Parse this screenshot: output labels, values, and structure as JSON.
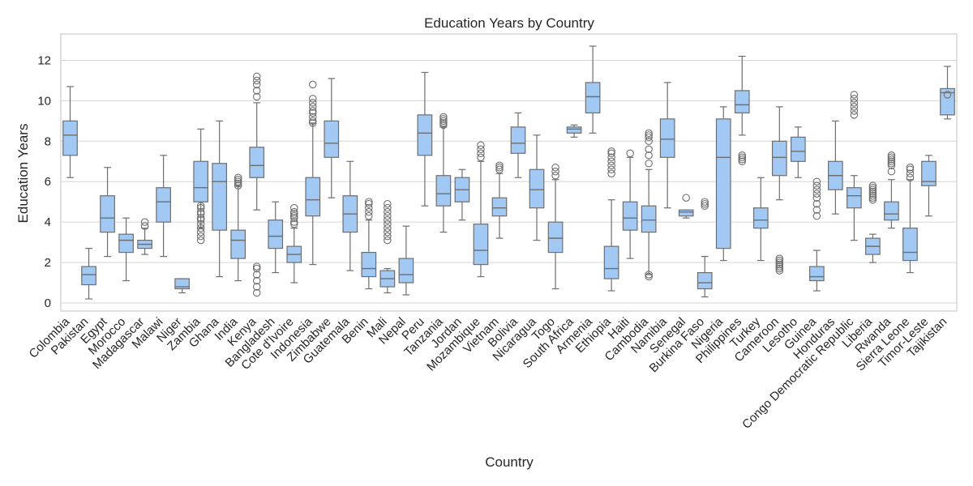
{
  "chart_data": {
    "type": "box",
    "title": "Education Years by Country",
    "xlabel": "Country",
    "ylabel": "Education Years",
    "ylim": [
      -0.4,
      13.3
    ],
    "yticks": [
      0,
      2,
      4,
      6,
      8,
      10,
      12
    ],
    "grid": true,
    "box_color": "#a1c9f4",
    "line_color": "#6e6e6e",
    "grid_color": "#d6d6d6",
    "categories": [
      "Colombia",
      "Pakistan",
      "Egypt",
      "Morocco",
      "Madagascar",
      "Malawi",
      "Niger",
      "Zambia",
      "Ghana",
      "India",
      "Kenya",
      "Bangladesh",
      "Cote d'Ivoire",
      "Indonesia",
      "Zimbabwe",
      "Guatemala",
      "Benin",
      "Mali",
      "Nepal",
      "Peru",
      "Tanzania",
      "Jordan",
      "Mozambique",
      "Vietnam",
      "Bolivia",
      "Nicaragua",
      "Togo",
      "South Africa",
      "Armenia",
      "Ethiopia",
      "Haiti",
      "Cambodia",
      "Namibia",
      "Senegal",
      "Burkina Faso",
      "Nigeria",
      "Philippines",
      "Turkey",
      "Cameroon",
      "Lesotho",
      "Guinea",
      "Honduras",
      "Congo Democratic Republic",
      "Liberia",
      "Rwanda",
      "Sierra Leone",
      "Timor-Leste",
      "Tajikistan"
    ],
    "boxes": [
      {
        "whislo": 6.2,
        "q1": 7.3,
        "med": 8.3,
        "q3": 9.0,
        "whishi": 10.7,
        "fliers": []
      },
      {
        "whislo": 0.2,
        "q1": 0.9,
        "med": 1.4,
        "q3": 1.8,
        "whishi": 2.7,
        "fliers": []
      },
      {
        "whislo": 2.3,
        "q1": 3.5,
        "med": 4.2,
        "q3": 5.3,
        "whishi": 6.7,
        "fliers": []
      },
      {
        "whislo": 1.1,
        "q1": 2.5,
        "med": 3.1,
        "q3": 3.4,
        "whishi": 4.2,
        "fliers": []
      },
      {
        "whislo": 2.4,
        "q1": 2.7,
        "med": 2.9,
        "q3": 3.1,
        "whishi": 3.7,
        "fliers": [
          3.8,
          4.0
        ]
      },
      {
        "whislo": 2.3,
        "q1": 4.0,
        "med": 5.0,
        "q3": 5.7,
        "whishi": 7.3,
        "fliers": []
      },
      {
        "whislo": 0.5,
        "q1": 0.7,
        "med": 0.8,
        "q3": 1.2,
        "whishi": 1.2,
        "fliers": []
      },
      {
        "whislo": 3.7,
        "q1": 5.0,
        "med": 5.7,
        "q3": 7.0,
        "whishi": 8.6,
        "fliers": [
          3.1,
          3.3,
          3.5,
          3.7,
          3.9,
          4.1,
          4.2,
          4.4,
          4.5,
          4.7,
          4.8
        ]
      },
      {
        "whislo": 1.3,
        "q1": 3.6,
        "med": 6.0,
        "q3": 6.9,
        "whishi": 9.0,
        "fliers": []
      },
      {
        "whislo": 1.1,
        "q1": 2.2,
        "med": 3.1,
        "q3": 3.6,
        "whishi": 5.8,
        "fliers": [
          5.8,
          5.9,
          6.0,
          6.1,
          6.2
        ]
      },
      {
        "whislo": 4.6,
        "q1": 6.2,
        "med": 6.8,
        "q3": 7.7,
        "whishi": 9.9,
        "fliers": [
          10.2,
          10.5,
          10.8,
          11.0,
          11.2,
          0.5,
          0.8,
          1.1,
          1.4,
          1.7,
          1.8
        ]
      },
      {
        "whislo": 1.5,
        "q1": 2.7,
        "med": 3.3,
        "q3": 4.1,
        "whishi": 5.0,
        "fliers": []
      },
      {
        "whislo": 1.0,
        "q1": 2.0,
        "med": 2.4,
        "q3": 2.8,
        "whishi": 3.7,
        "fliers": [
          3.9,
          4.0,
          4.2,
          4.3,
          4.4,
          4.5,
          4.7
        ]
      },
      {
        "whislo": 1.9,
        "q1": 4.3,
        "med": 5.1,
        "q3": 6.2,
        "whishi": 8.9,
        "fliers": [
          8.9,
          9.0,
          9.2,
          9.4,
          9.5,
          9.7,
          9.9,
          10.1,
          10.8
        ]
      },
      {
        "whislo": 5.2,
        "q1": 7.2,
        "med": 7.9,
        "q3": 9.0,
        "whishi": 11.1,
        "fliers": []
      },
      {
        "whislo": 1.6,
        "q1": 3.5,
        "med": 4.4,
        "q3": 5.3,
        "whishi": 7.0,
        "fliers": []
      },
      {
        "whislo": 0.7,
        "q1": 1.3,
        "med": 1.7,
        "q3": 2.5,
        "whishi": 4.1,
        "fliers": [
          4.3,
          4.5,
          4.7,
          4.9,
          5.0
        ]
      },
      {
        "whislo": 0.5,
        "q1": 0.8,
        "med": 1.2,
        "q3": 1.6,
        "whishi": 1.7,
        "fliers": [
          3.1,
          3.3,
          3.5,
          3.7,
          3.9,
          4.1,
          4.3,
          4.5,
          4.7,
          4.9
        ]
      },
      {
        "whislo": 0.4,
        "q1": 1.0,
        "med": 1.4,
        "q3": 2.2,
        "whishi": 3.8,
        "fliers": []
      },
      {
        "whislo": 4.8,
        "q1": 7.3,
        "med": 8.4,
        "q3": 9.3,
        "whishi": 11.4,
        "fliers": []
      },
      {
        "whislo": 3.5,
        "q1": 4.8,
        "med": 5.4,
        "q3": 6.3,
        "whishi": 8.7,
        "fliers": [
          8.8,
          8.9,
          9.0,
          9.1,
          9.2
        ]
      },
      {
        "whislo": 4.1,
        "q1": 5.0,
        "med": 5.6,
        "q3": 6.2,
        "whishi": 6.6,
        "fliers": []
      },
      {
        "whislo": 1.3,
        "q1": 1.9,
        "med": 2.6,
        "q3": 3.9,
        "whishi": 7.0,
        "fliers": [
          7.2,
          7.4,
          7.6,
          7.8
        ]
      },
      {
        "whislo": 3.2,
        "q1": 4.3,
        "med": 4.7,
        "q3": 5.2,
        "whishi": 6.4,
        "fliers": [
          6.6,
          6.7,
          6.8
        ]
      },
      {
        "whislo": 6.2,
        "q1": 7.4,
        "med": 7.9,
        "q3": 8.7,
        "whishi": 9.4,
        "fliers": []
      },
      {
        "whislo": 3.1,
        "q1": 4.7,
        "med": 5.6,
        "q3": 6.6,
        "whishi": 8.3,
        "fliers": []
      },
      {
        "whislo": 0.7,
        "q1": 2.5,
        "med": 3.2,
        "q3": 4.0,
        "whishi": 6.1,
        "fliers": [
          6.3,
          6.5,
          6.7
        ]
      },
      {
        "whislo": 8.2,
        "q1": 8.4,
        "med": 8.6,
        "q3": 8.7,
        "whishi": 8.8,
        "fliers": []
      },
      {
        "whislo": 8.4,
        "q1": 9.4,
        "med": 10.2,
        "q3": 10.9,
        "whishi": 12.7,
        "fliers": []
      },
      {
        "whislo": 0.6,
        "q1": 1.2,
        "med": 1.7,
        "q3": 2.8,
        "whishi": 5.1,
        "fliers": [
          6.4,
          6.6,
          6.8,
          7.0,
          7.2,
          7.4,
          7.5
        ]
      },
      {
        "whislo": 2.2,
        "q1": 3.6,
        "med": 4.2,
        "q3": 5.0,
        "whishi": 7.2,
        "fliers": [
          7.4
        ]
      },
      {
        "whislo": 1.4,
        "q1": 3.5,
        "med": 4.1,
        "q3": 4.8,
        "whishi": 6.6,
        "fliers": [
          6.9,
          7.3,
          7.6,
          8.0,
          8.2,
          8.3,
          8.4,
          1.3,
          1.4
        ]
      },
      {
        "whislo": 4.7,
        "q1": 7.2,
        "med": 8.1,
        "q3": 9.1,
        "whishi": 10.9,
        "fliers": []
      },
      {
        "whislo": 4.2,
        "q1": 4.3,
        "med": 4.5,
        "q3": 4.6,
        "whishi": 4.6,
        "fliers": [
          5.2
        ]
      },
      {
        "whislo": 0.3,
        "q1": 0.7,
        "med": 1.0,
        "q3": 1.5,
        "whishi": 2.3,
        "fliers": [
          4.8,
          4.9,
          5.0
        ]
      },
      {
        "whislo": 2.1,
        "q1": 2.7,
        "med": 7.2,
        "q3": 9.1,
        "whishi": 9.7,
        "fliers": []
      },
      {
        "whislo": 8.3,
        "q1": 9.4,
        "med": 9.8,
        "q3": 10.5,
        "whishi": 12.2,
        "fliers": [
          7.0,
          7.1,
          7.2,
          7.3
        ]
      },
      {
        "whislo": 2.1,
        "q1": 3.7,
        "med": 4.1,
        "q3": 4.7,
        "whishi": 6.2,
        "fliers": []
      },
      {
        "whislo": 5.1,
        "q1": 6.3,
        "med": 7.2,
        "q3": 8.0,
        "whishi": 9.7,
        "fliers": [
          1.6,
          1.7,
          1.8,
          1.9,
          2.0,
          2.1,
          2.2
        ]
      },
      {
        "whislo": 6.2,
        "q1": 7.0,
        "med": 7.5,
        "q3": 8.2,
        "whishi": 8.7,
        "fliers": []
      },
      {
        "whislo": 0.6,
        "q1": 1.1,
        "med": 1.3,
        "q3": 1.8,
        "whishi": 2.6,
        "fliers": [
          4.3,
          4.6,
          4.9,
          5.2,
          5.4,
          5.6,
          5.8,
          6.0
        ]
      },
      {
        "whislo": 4.4,
        "q1": 5.6,
        "med": 6.3,
        "q3": 7.0,
        "whishi": 9.0,
        "fliers": []
      },
      {
        "whislo": 3.1,
        "q1": 4.7,
        "med": 5.3,
        "q3": 5.7,
        "whishi": 6.3,
        "fliers": [
          9.3,
          9.5,
          9.7,
          9.9,
          10.1,
          10.3
        ]
      },
      {
        "whislo": 2.0,
        "q1": 2.4,
        "med": 2.8,
        "q3": 3.2,
        "whishi": 3.4,
        "fliers": [
          5.1,
          5.2,
          5.3,
          5.4,
          5.5,
          5.6,
          5.7,
          5.8
        ]
      },
      {
        "whislo": 3.7,
        "q1": 4.1,
        "med": 4.4,
        "q3": 5.0,
        "whishi": 6.1,
        "fliers": [
          6.5,
          6.8,
          6.9,
          7.0,
          7.1,
          7.2,
          7.3
        ]
      },
      {
        "whislo": 1.5,
        "q1": 2.1,
        "med": 2.5,
        "q3": 3.7,
        "whishi": 6.1,
        "fliers": [
          6.2,
          6.4,
          6.6,
          6.7
        ]
      },
      {
        "whislo": 4.3,
        "q1": 5.8,
        "med": 6.0,
        "q3": 7.0,
        "whishi": 7.3,
        "fliers": []
      },
      {
        "whislo": 9.1,
        "q1": 9.3,
        "med": 10.4,
        "q3": 10.6,
        "whishi": 11.7,
        "fliers": [
          10.3
        ]
      }
    ]
  }
}
